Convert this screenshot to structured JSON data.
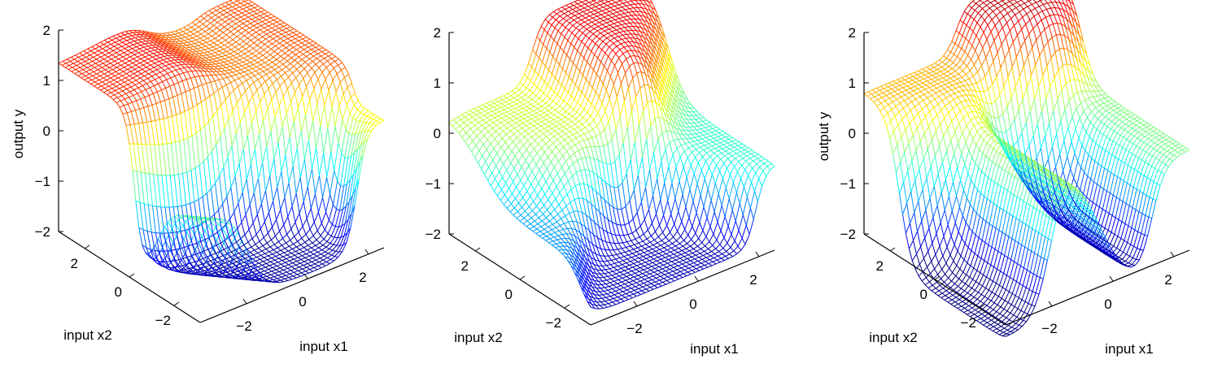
{
  "chart_data": [
    {
      "type": "surface",
      "title": "",
      "zlabel": "output y",
      "xlabel": "input x1",
      "ylabel": "input x2",
      "zlim": [
        -2,
        2
      ],
      "xlim": [
        -3,
        3
      ],
      "ylim": [
        -3,
        3
      ],
      "z_ticks": [
        "2",
        "1",
        "0",
        "−1",
        "−2"
      ],
      "x_ticks": [
        "−2",
        "0",
        "2"
      ],
      "y_ticks": [
        "2",
        "0",
        "−2"
      ],
      "colormap": "jet",
      "grid": "off",
      "features": [
        {
          "x1": -3.0,
          "x2": -3.0,
          "y": 0.0
        },
        {
          "x1": -1.6,
          "x2": 1.5,
          "y": 1.3
        },
        {
          "x1": -1.0,
          "x2": 1.5,
          "y": 1.6
        },
        {
          "x1": 0.5,
          "x2": 1.5,
          "y": 1.0
        },
        {
          "x1": 3.0,
          "x2": 2.0,
          "y": 1.2
        },
        {
          "x1": -1.2,
          "x2": -1.5,
          "y": -1.9
        }
      ]
    },
    {
      "type": "surface",
      "title": "",
      "zlabel": "",
      "xlabel": "input x1",
      "ylabel": "input x2",
      "zlim": [
        -2,
        2
      ],
      "xlim": [
        -3,
        3
      ],
      "ylim": [
        -3,
        3
      ],
      "z_ticks": [
        "2",
        "1",
        "0",
        "−1",
        "−2"
      ],
      "x_ticks": [
        "−2",
        "0",
        "2"
      ],
      "y_ticks": [
        "2",
        "0",
        "−2"
      ],
      "colormap": "jet",
      "grid": "off",
      "features": [
        {
          "x1": -3.0,
          "x2": 0.0,
          "y": -0.9
        },
        {
          "x1": -1.5,
          "x2": 1.0,
          "y": 0.3
        },
        {
          "x1": 1.5,
          "x2": 1.5,
          "y": 1.6
        },
        {
          "x1": -0.5,
          "x2": -2.0,
          "y": -1.8
        },
        {
          "x1": 3.0,
          "x2": 0.0,
          "y": -0.3
        }
      ]
    },
    {
      "type": "surface",
      "title": "",
      "zlabel": "output y",
      "xlabel": "input x1",
      "ylabel": "input x2",
      "zlim": [
        -2,
        2
      ],
      "xlim": [
        -3,
        3
      ],
      "ylim": [
        -3,
        3
      ],
      "z_ticks": [
        "2",
        "1",
        "0",
        "−1",
        "−2"
      ],
      "x_ticks": [
        "−2",
        "0",
        "2"
      ],
      "y_ticks": [
        "2",
        "0",
        "−2"
      ],
      "colormap": "jet",
      "grid": "off",
      "features": [
        {
          "x1": -2.5,
          "x2": 0.0,
          "y": -2.3
        },
        {
          "x1": -1.5,
          "x2": 2.0,
          "y": 0.8
        },
        {
          "x1": -0.5,
          "x2": 0.0,
          "y": 1.0
        },
        {
          "x1": 0.5,
          "x2": 0.0,
          "y": -2.4
        },
        {
          "x1": 1.5,
          "x2": 2.0,
          "y": 1.8
        },
        {
          "x1": 3.0,
          "x2": 0.0,
          "y": 0.0
        }
      ]
    }
  ]
}
